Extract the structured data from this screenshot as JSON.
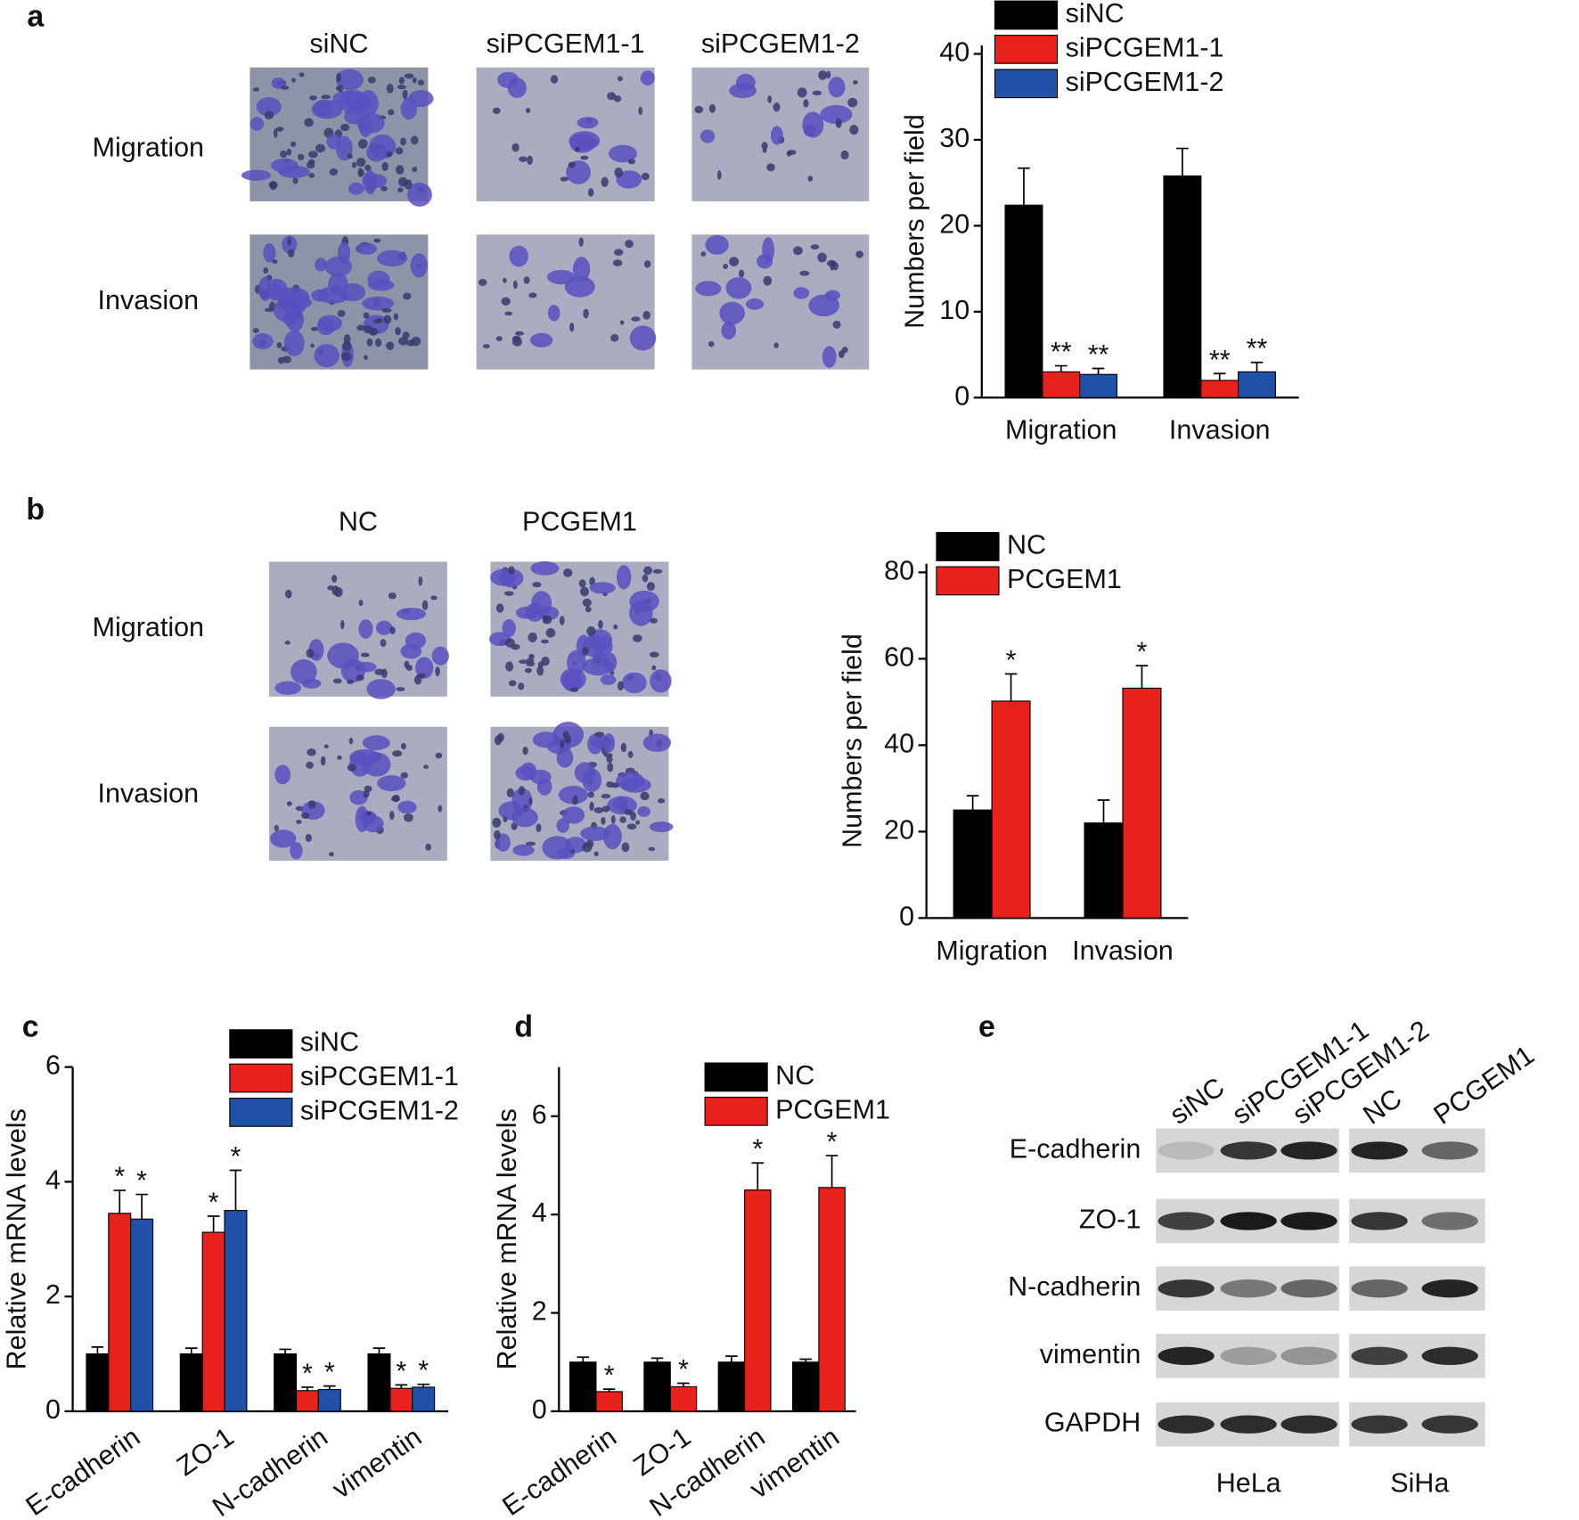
{
  "panel_labels": [
    "a",
    "b",
    "c",
    "d",
    "e"
  ],
  "micrographs": [
    {
      "columns": [
        "siNC",
        "siPCGEM1-1",
        "siPCGEM1-2"
      ],
      "rows": [
        "Migration",
        "Invasion"
      ]
    },
    {
      "columns": [
        "NC",
        "PCGEM1"
      ],
      "rows": [
        "Migration",
        "Invasion"
      ]
    }
  ],
  "chart_data": [
    {
      "type": "bar",
      "ylabel": "Numbers per field",
      "categories": [
        "Migration",
        "Invasion"
      ],
      "ylim": [
        0,
        41
      ],
      "yticks": [
        0,
        10,
        20,
        30,
        40
      ],
      "series": [
        {
          "name": "siNC",
          "color": "#000000",
          "values": [
            22.4,
            25.8
          ],
          "errors": [
            4.3,
            3.2
          ]
        },
        {
          "name": "siPCGEM1-1",
          "color": "#e8211c",
          "values": [
            3.0,
            2.0
          ],
          "errors": [
            0.7,
            0.8
          ],
          "significance": [
            "**",
            "**"
          ]
        },
        {
          "name": "siPCGEM1-2",
          "color": "#2150a8",
          "values": [
            2.7,
            3.0
          ],
          "errors": [
            0.7,
            1.1
          ],
          "significance": [
            "**",
            "**"
          ]
        }
      ]
    },
    {
      "type": "bar",
      "ylabel": "Numbers per field",
      "categories": [
        "Migration",
        "Invasion"
      ],
      "ylim": [
        0,
        82
      ],
      "yticks": [
        0,
        20,
        40,
        60,
        80
      ],
      "series": [
        {
          "name": "NC",
          "color": "#000000",
          "values": [
            25,
            22
          ],
          "errors": [
            3.3,
            5.3
          ]
        },
        {
          "name": "PCGEM1",
          "color": "#e8211c",
          "values": [
            50.2,
            53.2
          ],
          "errors": [
            6.3,
            5.2
          ],
          "significance": [
            "*",
            "*"
          ]
        }
      ]
    },
    {
      "type": "bar",
      "ylabel": "Relative mRNA levels",
      "categories": [
        "E-cadherin",
        "ZO-1",
        "N-cadherin",
        "vimentin"
      ],
      "ylim": [
        0,
        6
      ],
      "yticks": [
        0,
        2,
        4,
        6
      ],
      "series": [
        {
          "name": "siNC",
          "color": "#000000",
          "values": [
            1,
            1,
            1,
            1
          ],
          "errors": [
            0.12,
            0.1,
            0.08,
            0.1
          ]
        },
        {
          "name": "siPCGEM1-1",
          "color": "#e8211c",
          "values": [
            3.45,
            3.12,
            0.36,
            0.4
          ],
          "errors": [
            0.4,
            0.28,
            0.06,
            0.06
          ],
          "significance": [
            "*",
            "*",
            "*",
            "*"
          ]
        },
        {
          "name": "siPCGEM1-2",
          "color": "#2150a8",
          "values": [
            3.35,
            3.5,
            0.38,
            0.42
          ],
          "errors": [
            0.43,
            0.7,
            0.06,
            0.05
          ],
          "significance": [
            "*",
            "*",
            "*",
            "*"
          ]
        }
      ]
    },
    {
      "type": "bar",
      "ylabel": "Relative mRNA levels",
      "categories": [
        "E-cadherin",
        "ZO-1",
        "N-cadherin",
        "vimentin"
      ],
      "ylim": [
        0,
        7
      ],
      "yticks": [
        0,
        2,
        4,
        6
      ],
      "series": [
        {
          "name": "NC",
          "color": "#000000",
          "values": [
            1,
            1,
            1,
            1
          ],
          "errors": [
            0.1,
            0.08,
            0.12,
            0.06
          ]
        },
        {
          "name": "PCGEM1",
          "color": "#e8211c",
          "values": [
            0.4,
            0.5,
            4.5,
            4.55
          ],
          "errors": [
            0.05,
            0.07,
            0.55,
            0.65
          ],
          "significance": [
            "*",
            "*",
            "*",
            "*"
          ]
        }
      ]
    }
  ],
  "western_blot": {
    "proteins": [
      "E-cadherin",
      "ZO-1",
      "N-cadherin",
      "vimentin",
      "GAPDH"
    ],
    "groups": [
      {
        "cell_line": "HeLa",
        "lanes": [
          "siNC",
          "siPCGEM1-1",
          "siPCGEM1-2"
        ]
      },
      {
        "cell_line": "SiHa",
        "lanes": [
          "NC",
          "PCGEM1"
        ]
      }
    ]
  }
}
